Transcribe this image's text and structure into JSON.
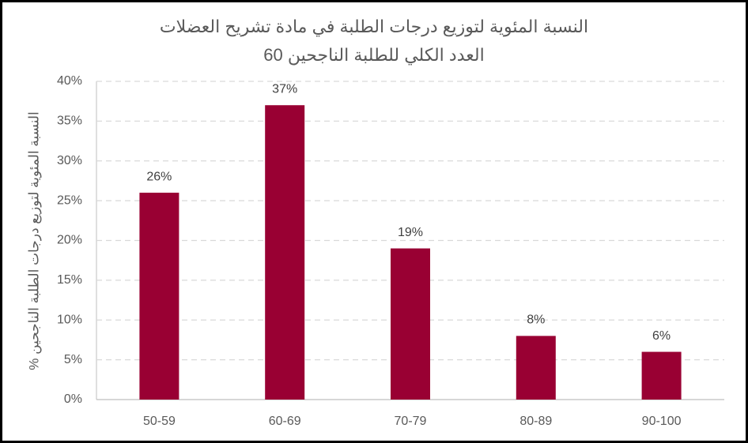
{
  "chart_data": {
    "type": "bar",
    "title": "النسبة المئوية لتوزيع درجات الطلبة في مادة تشريح العضلات",
    "subtitle": "العدد الكلي للطلبة الناجحين 60",
    "y_label": "النسبة المئوية لتوزيع درجات الطلبة الناجحين %",
    "categories": [
      "50-59",
      "60-69",
      "70-79",
      "80-89",
      "90-100"
    ],
    "values": [
      26,
      37,
      19,
      8,
      6
    ],
    "value_labels": [
      "26%",
      "37%",
      "19%",
      "8%",
      "6%"
    ],
    "color": "#990033",
    "ylim": [
      0,
      40
    ],
    "yticks": [
      {
        "value": 0,
        "label": "0%"
      },
      {
        "value": 5,
        "label": "5%"
      },
      {
        "value": 10,
        "label": "10%"
      },
      {
        "value": 15,
        "label": "15%"
      },
      {
        "value": 20,
        "label": "20%"
      },
      {
        "value": 25,
        "label": "25%"
      },
      {
        "value": 30,
        "label": "30%"
      },
      {
        "value": 35,
        "label": "35%"
      },
      {
        "value": 40,
        "label": "40%"
      }
    ],
    "grid": true
  }
}
